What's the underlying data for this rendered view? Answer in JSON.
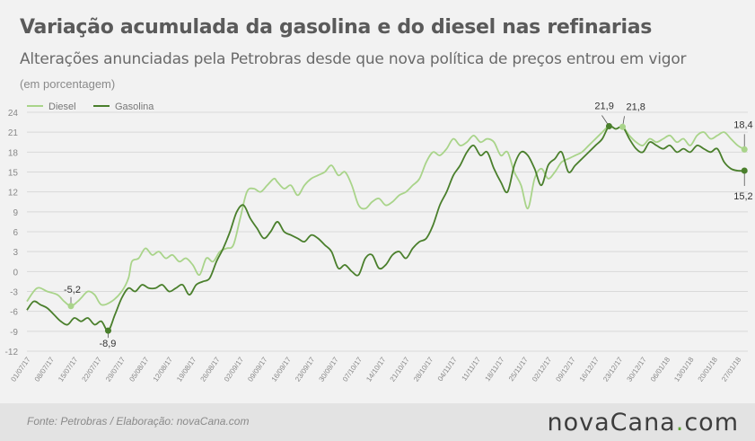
{
  "header": {
    "title": "Variação acumulada da gasolina e do diesel nas refinarias",
    "subtitle": "Alterações anunciadas pela Petrobras desde que nova política de preços entrou em vigor",
    "unit": "(em porcentagem)"
  },
  "footer": {
    "source": "Fonte:  Petrobras  / Elaboração:  novaCana.com",
    "brand_part1": "nova",
    "brand_part2": "Cana",
    "brand_dot": ".",
    "brand_part3": "com"
  },
  "colors": {
    "diesel": "#a9d48a",
    "gasolina": "#4a7f2c",
    "grid": "#d9d9d9",
    "axis_text": "#888888"
  },
  "chart_data": {
    "type": "line",
    "title": "Variação acumulada da gasolina e do diesel nas refinarias",
    "ylabel": "(em porcentagem)",
    "ylim": [
      -12,
      24
    ],
    "yticks": [
      24,
      21,
      18,
      15,
      12,
      9,
      6,
      3,
      0,
      -3,
      -6,
      -9,
      -12
    ],
    "xlim": [
      0,
      213
    ],
    "xtick_labels": [
      "01/07/17",
      "08/07/17",
      "15/07/17",
      "22/07/17",
      "29/07/17",
      "05/08/17",
      "12/08/17",
      "19/08/17",
      "26/08/17",
      "02/09/17",
      "09/09/17",
      "16/09/17",
      "23/09/17",
      "30/09/17",
      "07/10/17",
      "14/10/17",
      "21/10/17",
      "28/10/17",
      "04/11/17",
      "11/11/17",
      "18/11/17",
      "25/11/17",
      "02/12/17",
      "09/12/17",
      "16/12/17",
      "23/12/17",
      "30/12/17",
      "06/01/18",
      "13/01/18",
      "20/01/18",
      "27/01/18"
    ],
    "xtick_step_days": 7,
    "legend": [
      {
        "name": "Diesel"
      },
      {
        "name": "Gasolina"
      }
    ],
    "series": [
      {
        "name": "Diesel",
        "x": [
          0,
          3,
          6,
          9,
          11,
          13,
          15,
          16,
          18,
          20,
          22,
          25,
          28,
          30,
          31,
          33,
          35,
          37,
          39,
          41,
          43,
          45,
          47,
          49,
          51,
          53,
          55,
          57,
          59,
          61,
          63,
          65,
          67,
          69,
          71,
          73,
          74,
          76,
          78,
          80,
          82,
          84,
          86,
          88,
          90,
          92,
          94,
          96,
          98,
          100,
          102,
          104,
          106,
          108,
          110,
          112,
          114,
          116,
          118,
          120,
          122,
          124,
          126,
          128,
          130,
          132,
          134,
          136,
          138,
          140,
          142,
          144,
          146,
          148,
          150,
          152,
          154,
          156,
          158,
          160,
          162,
          164,
          166,
          168,
          170,
          172,
          174,
          176,
          178,
          180,
          182,
          184,
          186,
          188,
          190,
          192,
          194,
          196,
          198,
          200,
          202,
          204,
          206,
          208,
          210,
          212
        ],
        "values": [
          -4.5,
          -2.5,
          -3.0,
          -3.5,
          -4.5,
          -5.2,
          -4.5,
          -4.0,
          -3.0,
          -3.5,
          -5.0,
          -4.5,
          -3.0,
          -1.0,
          1.5,
          2.0,
          3.5,
          2.5,
          3.0,
          2.0,
          2.5,
          1.5,
          2.0,
          1.0,
          -0.5,
          2.0,
          1.5,
          3.0,
          3.5,
          4.0,
          8.0,
          12.0,
          12.5,
          12.0,
          13.0,
          14.0,
          13.5,
          12.5,
          13.0,
          11.5,
          13.0,
          14.0,
          14.5,
          15.0,
          16.0,
          14.5,
          15.0,
          13.0,
          10.0,
          9.5,
          10.5,
          11.0,
          10.0,
          10.5,
          11.5,
          12.0,
          13.0,
          14.0,
          16.5,
          18.0,
          17.5,
          18.5,
          20.0,
          19.0,
          19.5,
          20.5,
          19.5,
          20.0,
          19.5,
          17.5,
          18.0,
          15.0,
          13.0,
          9.5,
          14.0,
          15.5,
          14.0,
          15.0,
          16.5,
          17.0,
          17.5,
          18.0,
          19.0,
          20.0,
          21.0,
          21.9,
          21.5,
          21.8,
          20.5,
          19.5,
          19.0,
          20.0,
          19.5,
          20.0,
          20.5,
          19.5,
          20.0,
          19.0,
          20.5,
          21.0,
          20.0,
          20.5,
          21.0,
          20.0,
          19.0,
          18.4
        ]
      },
      {
        "name": "Gasolina",
        "x": [
          0,
          2,
          4,
          6,
          8,
          10,
          12,
          14,
          16,
          18,
          20,
          22,
          24,
          26,
          28,
          30,
          32,
          34,
          36,
          38,
          40,
          42,
          44,
          46,
          48,
          50,
          52,
          54,
          56,
          58,
          60,
          62,
          64,
          66,
          68,
          70,
          72,
          74,
          76,
          78,
          80,
          82,
          84,
          86,
          88,
          90,
          92,
          94,
          96,
          98,
          100,
          102,
          104,
          106,
          108,
          110,
          112,
          114,
          116,
          118,
          120,
          122,
          124,
          126,
          128,
          130,
          132,
          134,
          136,
          138,
          140,
          142,
          144,
          146,
          148,
          150,
          152,
          154,
          156,
          158,
          160,
          162,
          164,
          166,
          168,
          170,
          172,
          174,
          176,
          178,
          180,
          182,
          184,
          186,
          188,
          190,
          192,
          194,
          196,
          198,
          200,
          202,
          204,
          206,
          208,
          210,
          212
        ],
        "values": [
          -5.8,
          -4.5,
          -5.0,
          -5.5,
          -6.5,
          -7.5,
          -8.0,
          -7.0,
          -7.5,
          -7.0,
          -8.0,
          -7.5,
          -8.9,
          -6.5,
          -4.0,
          -2.5,
          -3.0,
          -2.0,
          -2.5,
          -2.5,
          -2.0,
          -3.0,
          -2.5,
          -2.0,
          -3.5,
          -2.0,
          -1.5,
          -1.0,
          1.5,
          3.5,
          6.0,
          9.0,
          10.0,
          8.0,
          6.5,
          5.0,
          6.0,
          7.5,
          6.0,
          5.5,
          5.0,
          4.5,
          5.5,
          5.0,
          4.0,
          3.0,
          0.5,
          1.0,
          0.0,
          -0.5,
          2.0,
          2.5,
          0.5,
          1.0,
          2.5,
          3.0,
          2.0,
          3.5,
          4.5,
          5.0,
          7.0,
          10.0,
          12.0,
          14.5,
          16.0,
          18.0,
          19.0,
          17.5,
          18.0,
          15.5,
          13.5,
          12.0,
          16.0,
          18.0,
          17.5,
          15.5,
          13.0,
          16.0,
          17.0,
          18.0,
          15.0,
          16.0,
          17.0,
          18.0,
          19.0,
          20.0,
          21.9,
          21.5,
          21.8,
          20.0,
          18.5,
          18.0,
          19.5,
          19.0,
          18.5,
          19.0,
          18.0,
          18.5,
          18.0,
          19.0,
          18.5,
          18.0,
          18.5,
          16.5,
          15.5,
          15.2,
          15.2
        ]
      }
    ],
    "annotations": [
      {
        "series": "Diesel",
        "x": 13,
        "value": -5.2,
        "text": "-5,2"
      },
      {
        "series": "Gasolina",
        "x": 24,
        "value": -8.9,
        "text": "-8,9"
      },
      {
        "series": "Gasolina",
        "x": 172,
        "value": 21.9,
        "text": "21,9"
      },
      {
        "series": "Diesel",
        "x": 176,
        "value": 21.8,
        "text": "21,8"
      },
      {
        "series": "Diesel",
        "x": 212,
        "value": 18.4,
        "text": "18,4"
      },
      {
        "series": "Gasolina",
        "x": 212,
        "value": 15.2,
        "text": "15,2"
      }
    ]
  }
}
